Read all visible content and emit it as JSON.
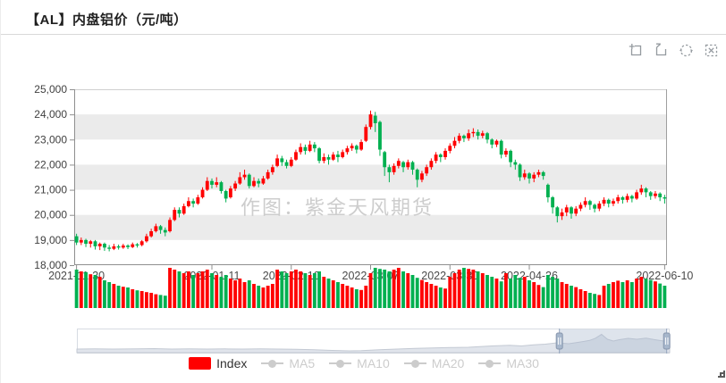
{
  "header": {
    "title": "【AL】内盘铝价（元/吨）"
  },
  "toolbox": {
    "icons": [
      "box-zoom-icon",
      "zoom-reset-icon",
      "restore-icon",
      "clear-icon"
    ]
  },
  "watermark": {
    "text": "作图：紫金天风期货"
  },
  "legend": {
    "position": "bottom-center",
    "active_text_color": "#333333",
    "inactive_color": "#cccccc",
    "items": [
      {
        "label": "Index",
        "icon": "bar-swatch",
        "swatch": "#ff0000",
        "active": true
      },
      {
        "label": "MA5",
        "icon": "line-marker",
        "active": false
      },
      {
        "label": "MA10",
        "icon": "line-marker",
        "active": false
      },
      {
        "label": "MA20",
        "icon": "line-marker",
        "active": false
      },
      {
        "label": "MA30",
        "icon": "line-marker",
        "active": false
      }
    ]
  },
  "chart_data": {
    "type": "candlestick",
    "title": "【AL】内盘铝价（元/吨）",
    "ylabel": "",
    "xlabel": "",
    "grid": {
      "split_area": true,
      "band_color": "#ebebeb"
    },
    "colors": {
      "up": "#ff0000",
      "down": "#00b050",
      "band": "#ebebeb"
    },
    "y_axis": {
      "min": 18000,
      "max": 25000,
      "step": 1000,
      "tick_labels": [
        "18,000",
        "19,000",
        "20,000",
        "21,000",
        "22,000",
        "23,000",
        "24,000",
        "25,000"
      ]
    },
    "x_axis": {
      "ticks": [
        {
          "index": 0,
          "label": "2021-11-30"
        },
        {
          "index": 29,
          "label": "2022-01-11"
        },
        {
          "index": 46,
          "label": "2022-02-10"
        },
        {
          "index": 63,
          "label": "2022-03-07"
        },
        {
          "index": 80,
          "label": "2022-03-30"
        },
        {
          "index": 97,
          "label": "2022-04-26"
        },
        {
          "index": 126,
          "label": "2022-06-10"
        }
      ]
    },
    "series": {
      "name": "Index",
      "ohlc_format": [
        "open",
        "close",
        "low",
        "high"
      ],
      "ohlc": [
        [
          19150,
          18900,
          18800,
          19250
        ],
        [
          18900,
          19000,
          18800,
          19100
        ],
        [
          19000,
          18850,
          18720,
          19050
        ],
        [
          18850,
          18950,
          18700,
          19000
        ],
        [
          18950,
          18750,
          18620,
          19000
        ],
        [
          18750,
          18850,
          18600,
          18900
        ],
        [
          18850,
          18700,
          18570,
          18900
        ],
        [
          18700,
          18650,
          18550,
          18800
        ],
        [
          18650,
          18750,
          18600,
          18850
        ],
        [
          18750,
          18700,
          18620,
          18820
        ],
        [
          18700,
          18780,
          18650,
          18850
        ],
        [
          18780,
          18720,
          18640,
          18830
        ],
        [
          18720,
          18830,
          18680,
          18900
        ],
        [
          18830,
          18780,
          18700,
          18880
        ],
        [
          18800,
          18950,
          18750,
          19000
        ],
        [
          18950,
          19150,
          18900,
          19250
        ],
        [
          19150,
          19350,
          19100,
          19450
        ],
        [
          19350,
          19550,
          19300,
          19650
        ],
        [
          19550,
          19400,
          19250,
          19600
        ],
        [
          19400,
          19300,
          19150,
          19500
        ],
        [
          19350,
          19800,
          19300,
          19900
        ],
        [
          19800,
          20200,
          19750,
          20300
        ],
        [
          20200,
          20050,
          19900,
          20300
        ],
        [
          20050,
          20350,
          20000,
          20450
        ],
        [
          20350,
          20550,
          20300,
          20700
        ],
        [
          20550,
          20450,
          20300,
          20650
        ],
        [
          20450,
          20700,
          20400,
          20800
        ],
        [
          20700,
          21000,
          20650,
          21100
        ],
        [
          21000,
          21350,
          20950,
          21500
        ],
        [
          21350,
          21200,
          21050,
          21450
        ],
        [
          21200,
          21300,
          21100,
          21500
        ],
        [
          21300,
          20950,
          20850,
          21350
        ],
        [
          20950,
          20650,
          20500,
          21000
        ],
        [
          20700,
          21050,
          20650,
          21150
        ],
        [
          21050,
          21250,
          20950,
          21350
        ],
        [
          21250,
          21500,
          21200,
          21700
        ],
        [
          21500,
          21600,
          21400,
          21800
        ],
        [
          21600,
          21150,
          21050,
          21650
        ],
        [
          21150,
          21350,
          21100,
          21500
        ],
        [
          21350,
          21250,
          21100,
          21450
        ],
        [
          21250,
          21450,
          21200,
          21550
        ],
        [
          21450,
          21700,
          21400,
          21800
        ],
        [
          21700,
          21900,
          21600,
          22000
        ],
        [
          21950,
          22250,
          21900,
          22400
        ],
        [
          22250,
          22100,
          21950,
          22350
        ],
        [
          22100,
          21950,
          21850,
          22200
        ],
        [
          21950,
          22200,
          21900,
          22300
        ],
        [
          22200,
          22500,
          22150,
          22600
        ],
        [
          22500,
          22700,
          22400,
          22850
        ],
        [
          22700,
          22550,
          22400,
          22800
        ],
        [
          22550,
          22800,
          22500,
          22950
        ],
        [
          22800,
          22650,
          22500,
          22900
        ],
        [
          22650,
          22150,
          22050,
          22700
        ],
        [
          22150,
          22300,
          22050,
          22450
        ],
        [
          22300,
          22200,
          22000,
          22400
        ],
        [
          22200,
          22400,
          22150,
          22500
        ],
        [
          22400,
          22300,
          22100,
          22550
        ],
        [
          22300,
          22500,
          22250,
          22600
        ],
        [
          22500,
          22650,
          22400,
          22750
        ],
        [
          22650,
          22750,
          22550,
          22850
        ],
        [
          22750,
          22600,
          22450,
          22800
        ],
        [
          22600,
          22900,
          22550,
          23000
        ],
        [
          22950,
          23500,
          22900,
          23600
        ],
        [
          23500,
          24000,
          23400,
          24150
        ],
        [
          23950,
          23650,
          23300,
          24100
        ],
        [
          23700,
          22600,
          22350,
          23750
        ],
        [
          22500,
          21900,
          21550,
          22550
        ],
        [
          21900,
          21700,
          21300,
          22000
        ],
        [
          21700,
          21950,
          21600,
          22050
        ],
        [
          21950,
          22150,
          21850,
          22250
        ],
        [
          22100,
          21900,
          21700,
          22150
        ],
        [
          21900,
          22100,
          21800,
          22200
        ],
        [
          22100,
          21800,
          21600,
          22150
        ],
        [
          21800,
          21400,
          21100,
          21850
        ],
        [
          21400,
          21650,
          21300,
          21750
        ],
        [
          21650,
          21900,
          21550,
          22000
        ],
        [
          21900,
          22150,
          21800,
          22250
        ],
        [
          22150,
          22400,
          22050,
          22500
        ],
        [
          22400,
          22300,
          22100,
          22450
        ],
        [
          22300,
          22550,
          22200,
          22650
        ],
        [
          22550,
          22750,
          22450,
          22850
        ],
        [
          22750,
          22950,
          22650,
          23100
        ],
        [
          22950,
          23150,
          22850,
          23250
        ],
        [
          23150,
          23050,
          22900,
          23200
        ],
        [
          23050,
          23250,
          22950,
          23400
        ],
        [
          23250,
          23300,
          23100,
          23450
        ],
        [
          23300,
          23150,
          23000,
          23400
        ],
        [
          23150,
          23250,
          23050,
          23350
        ],
        [
          23250,
          23000,
          22850,
          23300
        ],
        [
          23000,
          22800,
          22650,
          23050
        ],
        [
          22800,
          22950,
          22700,
          23000
        ],
        [
          22950,
          22400,
          22250,
          23000
        ],
        [
          22400,
          22550,
          22300,
          22650
        ],
        [
          22550,
          22100,
          21900,
          22600
        ],
        [
          22100,
          22000,
          21800,
          22200
        ],
        [
          22000,
          21500,
          21350,
          22050
        ],
        [
          21500,
          21650,
          21400,
          21800
        ],
        [
          21650,
          21450,
          21250,
          21700
        ],
        [
          21450,
          21600,
          21300,
          21700
        ],
        [
          21600,
          21700,
          21500,
          21800
        ],
        [
          21700,
          21550,
          21400,
          21750
        ],
        [
          21200,
          20700,
          20500,
          21250
        ],
        [
          20700,
          20300,
          20050,
          20750
        ],
        [
          20300,
          19950,
          19700,
          20350
        ],
        [
          19950,
          20100,
          19800,
          20250
        ],
        [
          20100,
          20300,
          19950,
          20400
        ],
        [
          20300,
          20050,
          19850,
          20350
        ],
        [
          20050,
          20250,
          19950,
          20350
        ],
        [
          20250,
          20400,
          20150,
          20500
        ],
        [
          20400,
          20550,
          20300,
          20700
        ],
        [
          20550,
          20400,
          20200,
          20600
        ],
        [
          20400,
          20250,
          20100,
          20450
        ],
        [
          20250,
          20450,
          20150,
          20550
        ],
        [
          20450,
          20600,
          20350,
          20700
        ],
        [
          20600,
          20450,
          20300,
          20650
        ],
        [
          20450,
          20550,
          20350,
          20650
        ],
        [
          20550,
          20700,
          20450,
          20800
        ],
        [
          20700,
          20600,
          20450,
          20750
        ],
        [
          20600,
          20750,
          20500,
          20850
        ],
        [
          20750,
          20650,
          20500,
          20800
        ],
        [
          20650,
          20900,
          20600,
          21000
        ],
        [
          20900,
          21050,
          20800,
          21200
        ],
        [
          21050,
          20900,
          20700,
          21100
        ],
        [
          20900,
          20750,
          20600,
          20950
        ],
        [
          20750,
          20850,
          20650,
          20950
        ],
        [
          20850,
          20700,
          20550,
          20900
        ],
        [
          20700,
          20650,
          20450,
          20800
        ]
      ]
    },
    "volumes": [
      0.95,
      0.9,
      0.88,
      0.82,
      0.8,
      0.75,
      0.65,
      0.6,
      0.55,
      0.5,
      0.47,
      0.45,
      0.4,
      0.37,
      0.35,
      0.32,
      0.3,
      0.26,
      0.24,
      0.22,
      1.0,
      0.95,
      0.9,
      0.85,
      0.9,
      0.8,
      0.85,
      0.9,
      0.95,
      0.85,
      0.8,
      0.75,
      0.8,
      0.7,
      0.65,
      0.7,
      0.6,
      0.65,
      0.55,
      0.5,
      0.45,
      0.5,
      0.55,
      0.95,
      0.9,
      0.85,
      0.9,
      0.95,
      0.9,
      0.85,
      0.8,
      0.85,
      0.9,
      0.75,
      0.7,
      0.65,
      0.6,
      0.55,
      0.5,
      0.45,
      0.4,
      0.38,
      0.5,
      0.85,
      1.0,
      0.97,
      0.95,
      0.9,
      0.95,
      1.0,
      0.9,
      0.85,
      0.8,
      0.72,
      0.66,
      0.6,
      0.55,
      0.5,
      0.45,
      0.42,
      0.75,
      0.85,
      0.95,
      1.0,
      0.97,
      0.95,
      0.9,
      0.85,
      0.8,
      0.75,
      0.7,
      0.62,
      0.85,
      0.7,
      0.8,
      0.72,
      0.75,
      0.65,
      0.6,
      0.52,
      0.46,
      0.8,
      0.75,
      0.7,
      0.6,
      0.55,
      0.5,
      0.46,
      0.4,
      0.35,
      0.3,
      0.27,
      0.24,
      0.5,
      0.55,
      0.6,
      0.64,
      0.6,
      0.65,
      0.6,
      0.7,
      0.75,
      0.7,
      0.66,
      0.62,
      0.56,
      0.5
    ],
    "slider": {
      "window": [
        0.814,
        0.995
      ],
      "profile": [
        [
          0,
          0.16
        ],
        [
          0.03,
          0.17
        ],
        [
          0.06,
          0.16
        ],
        [
          0.1,
          0.17
        ],
        [
          0.13,
          0.18
        ],
        [
          0.16,
          0.16
        ],
        [
          0.19,
          0.17
        ],
        [
          0.22,
          0.16
        ],
        [
          0.25,
          0.17
        ],
        [
          0.28,
          0.16
        ],
        [
          0.31,
          0.17
        ],
        [
          0.34,
          0.16
        ],
        [
          0.37,
          0.15
        ],
        [
          0.4,
          0.13
        ],
        [
          0.43,
          0.1
        ],
        [
          0.46,
          0.08
        ],
        [
          0.48,
          0.09
        ],
        [
          0.51,
          0.13
        ],
        [
          0.54,
          0.16
        ],
        [
          0.57,
          0.19
        ],
        [
          0.6,
          0.21
        ],
        [
          0.63,
          0.23
        ],
        [
          0.66,
          0.24
        ],
        [
          0.68,
          0.27
        ],
        [
          0.7,
          0.3
        ],
        [
          0.73,
          0.33
        ],
        [
          0.75,
          0.3
        ],
        [
          0.77,
          0.35
        ],
        [
          0.79,
          0.38
        ],
        [
          0.81,
          0.44
        ],
        [
          0.83,
          0.4
        ],
        [
          0.85,
          0.48
        ],
        [
          0.865,
          0.55
        ],
        [
          0.875,
          0.65
        ],
        [
          0.885,
          0.82
        ],
        [
          0.895,
          0.6
        ],
        [
          0.905,
          0.52
        ],
        [
          0.915,
          0.58
        ],
        [
          0.93,
          0.64
        ],
        [
          0.945,
          0.6
        ],
        [
          0.96,
          0.65
        ],
        [
          0.975,
          0.58
        ],
        [
          0.99,
          0.52
        ],
        [
          1,
          0.5
        ]
      ]
    }
  }
}
